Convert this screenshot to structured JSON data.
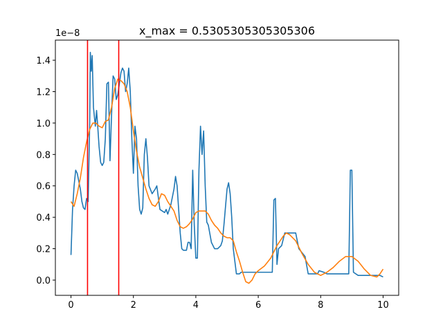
{
  "chart_data": {
    "type": "line",
    "title": "x_max = 0.5305305305305306",
    "offset_label": "1e−8",
    "xlim": [
      -0.5,
      10.5
    ],
    "ylim": [
      -0.097,
      1.528
    ],
    "xticks": [
      0,
      2,
      4,
      6,
      8,
      10
    ],
    "yticks": [
      {
        "value": 0.0,
        "label": "0.0"
      },
      0.2,
      0.4,
      0.6,
      0.8,
      {
        "value": 1.0,
        "label": "1.0"
      },
      1.2,
      1.4
    ],
    "series": [
      {
        "color": "#1f77b4",
        "x": [
          0.0,
          0.05,
          0.1,
          0.15,
          0.2,
          0.3,
          0.35,
          0.4,
          0.45,
          0.5,
          0.55,
          0.6,
          0.62,
          0.65,
          0.68,
          0.72,
          0.78,
          0.82,
          0.85,
          0.9,
          0.95,
          1.0,
          1.05,
          1.1,
          1.15,
          1.2,
          1.25,
          1.3,
          1.35,
          1.4,
          1.45,
          1.5,
          1.55,
          1.6,
          1.65,
          1.7,
          1.75,
          1.8,
          1.85,
          1.9,
          1.95,
          2.0,
          2.05,
          2.1,
          2.15,
          2.2,
          2.25,
          2.3,
          2.35,
          2.4,
          2.45,
          2.5,
          2.6,
          2.7,
          2.75,
          2.85,
          3.0,
          3.05,
          3.1,
          3.2,
          3.3,
          3.35,
          3.4,
          3.45,
          3.5,
          3.55,
          3.6,
          3.7,
          3.75,
          3.8,
          3.85,
          3.9,
          3.95,
          4.0,
          4.05,
          4.1,
          4.15,
          4.2,
          4.25,
          4.3,
          4.35,
          4.4,
          4.5,
          4.6,
          4.7,
          4.8,
          4.85,
          4.9,
          5.0,
          5.05,
          5.1,
          5.15,
          5.2,
          5.3,
          5.4,
          5.45,
          6.45,
          6.5,
          6.55,
          6.6,
          6.65,
          6.75,
          6.85,
          7.2,
          7.3,
          7.5,
          7.6,
          7.9,
          7.95,
          8.1,
          8.2,
          8.9,
          8.95,
          9.0,
          9.05,
          9.2,
          9.9,
          10.0
        ],
        "values": [
          0.16,
          0.45,
          0.6,
          0.7,
          0.68,
          0.58,
          0.5,
          0.46,
          0.45,
          0.52,
          0.5,
          1.0,
          1.45,
          1.33,
          1.43,
          1.1,
          0.98,
          1.08,
          1.0,
          0.85,
          0.75,
          0.73,
          0.75,
          0.9,
          1.25,
          1.26,
          0.76,
          1.05,
          1.3,
          1.28,
          1.15,
          1.18,
          1.25,
          1.32,
          1.35,
          1.33,
          1.2,
          1.25,
          1.35,
          1.2,
          0.9,
          0.68,
          0.98,
          0.9,
          0.6,
          0.45,
          0.42,
          0.46,
          0.8,
          0.9,
          0.78,
          0.6,
          0.55,
          0.58,
          0.6,
          0.45,
          0.43,
          0.45,
          0.42,
          0.48,
          0.58,
          0.66,
          0.6,
          0.45,
          0.3,
          0.2,
          0.19,
          0.19,
          0.24,
          0.24,
          0.2,
          0.7,
          0.35,
          0.14,
          0.14,
          0.7,
          0.98,
          0.8,
          0.95,
          0.6,
          0.37,
          0.35,
          0.24,
          0.2,
          0.2,
          0.22,
          0.25,
          0.35,
          0.58,
          0.62,
          0.55,
          0.4,
          0.2,
          0.04,
          0.04,
          0.05,
          0.05,
          0.51,
          0.52,
          0.1,
          0.2,
          0.22,
          0.3,
          0.3,
          0.2,
          0.15,
          0.04,
          0.04,
          0.06,
          0.05,
          0.04,
          0.04,
          0.7,
          0.7,
          0.05,
          0.03,
          0.03,
          0.02
        ]
      },
      {
        "color": "#ff7f0e",
        "x": [
          0,
          0.1,
          0.2,
          0.3,
          0.4,
          0.5,
          0.6,
          0.7,
          0.8,
          0.9,
          1.0,
          1.1,
          1.2,
          1.3,
          1.4,
          1.5,
          1.6,
          1.7,
          1.8,
          1.9,
          2.0,
          2.1,
          2.2,
          2.3,
          2.4,
          2.5,
          2.6,
          2.7,
          2.8,
          2.9,
          3.0,
          3.1,
          3.2,
          3.3,
          3.4,
          3.5,
          3.6,
          3.7,
          3.8,
          3.9,
          4.0,
          4.1,
          4.3,
          4.4,
          4.5,
          4.6,
          4.7,
          4.8,
          4.9,
          5.0,
          5.1,
          5.2,
          5.3,
          5.4,
          5.5,
          5.6,
          5.7,
          5.8,
          5.9,
          6.0,
          6.2,
          6.4,
          6.6,
          6.8,
          6.9,
          7.0,
          7.2,
          7.4,
          7.6,
          7.8,
          8.0,
          8.2,
          8.4,
          8.6,
          8.8,
          9.0,
          9.2,
          9.4,
          9.6,
          9.8,
          9.9,
          10.0
        ],
        "values": [
          0.5,
          0.47,
          0.55,
          0.65,
          0.78,
          0.88,
          0.96,
          1.0,
          1.0,
          0.98,
          0.97,
          1.01,
          1.02,
          1.1,
          1.22,
          1.28,
          1.27,
          1.25,
          1.2,
          1.1,
          0.95,
          0.82,
          0.72,
          0.65,
          0.58,
          0.52,
          0.48,
          0.47,
          0.5,
          0.55,
          0.54,
          0.5,
          0.47,
          0.44,
          0.38,
          0.34,
          0.33,
          0.34,
          0.36,
          0.39,
          0.43,
          0.44,
          0.44,
          0.42,
          0.38,
          0.35,
          0.33,
          0.3,
          0.28,
          0.27,
          0.27,
          0.25,
          0.18,
          0.12,
          0.05,
          -0.01,
          -0.02,
          0.0,
          0.04,
          0.06,
          0.09,
          0.14,
          0.22,
          0.28,
          0.3,
          0.29,
          0.25,
          0.17,
          0.1,
          0.05,
          0.03,
          0.05,
          0.08,
          0.12,
          0.15,
          0.15,
          0.12,
          0.07,
          0.03,
          0.02,
          0.04,
          0.07
        ]
      }
    ],
    "vlines": [
      {
        "x": 0.53,
        "color": "#ff0000"
      },
      {
        "x": 1.53,
        "color": "#ff0000"
      }
    ]
  }
}
